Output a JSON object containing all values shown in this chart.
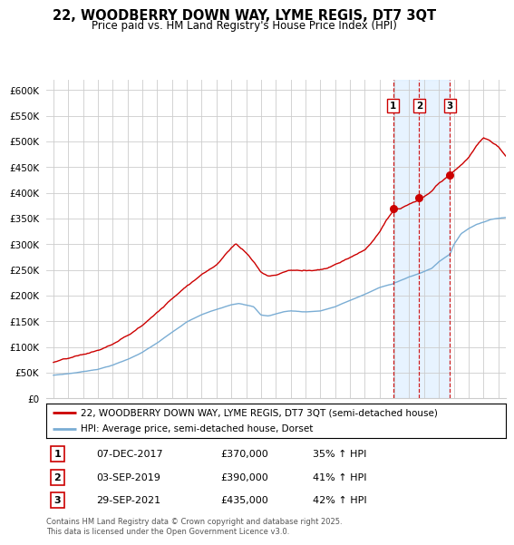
{
  "title": "22, WOODBERRY DOWN WAY, LYME REGIS, DT7 3QT",
  "subtitle": "Price paid vs. HM Land Registry's House Price Index (HPI)",
  "legend_property": "22, WOODBERRY DOWN WAY, LYME REGIS, DT7 3QT (semi-detached house)",
  "legend_hpi": "HPI: Average price, semi-detached house, Dorset",
  "ylim": [
    0,
    600000
  ],
  "yticks": [
    0,
    50000,
    100000,
    150000,
    200000,
    250000,
    300000,
    350000,
    400000,
    450000,
    500000,
    550000,
    600000
  ],
  "ytick_labels": [
    "£0",
    "£50K",
    "£100K",
    "£150K",
    "£200K",
    "£250K",
    "£300K",
    "£350K",
    "£400K",
    "£450K",
    "£500K",
    "£550K",
    "£600K"
  ],
  "transactions": [
    {
      "label": "1",
      "date": "07-DEC-2017",
      "price": 370000,
      "pct": "35%",
      "x": 2017.92
    },
    {
      "label": "2",
      "date": "03-SEP-2019",
      "price": 390000,
      "pct": "41%",
      "x": 2019.67
    },
    {
      "label": "3",
      "date": "29-SEP-2021",
      "price": 435000,
      "pct": "42%",
      "x": 2021.75
    }
  ],
  "property_color": "#cc0000",
  "hpi_color": "#7aadd4",
  "vline_color": "#cc0000",
  "shade_color": "#ddeeff",
  "background_color": "#ffffff",
  "grid_color": "#cccccc",
  "footer": "Contains HM Land Registry data © Crown copyright and database right 2025.\nThis data is licensed under the Open Government Licence v3.0.",
  "xlim": [
    1994.5,
    2025.5
  ],
  "xticks": [
    1995,
    1996,
    1997,
    1998,
    1999,
    2000,
    2001,
    2002,
    2003,
    2004,
    2005,
    2006,
    2007,
    2008,
    2009,
    2010,
    2011,
    2012,
    2013,
    2014,
    2015,
    2016,
    2017,
    2018,
    2019,
    2020,
    2021,
    2022,
    2023,
    2024,
    2025
  ]
}
